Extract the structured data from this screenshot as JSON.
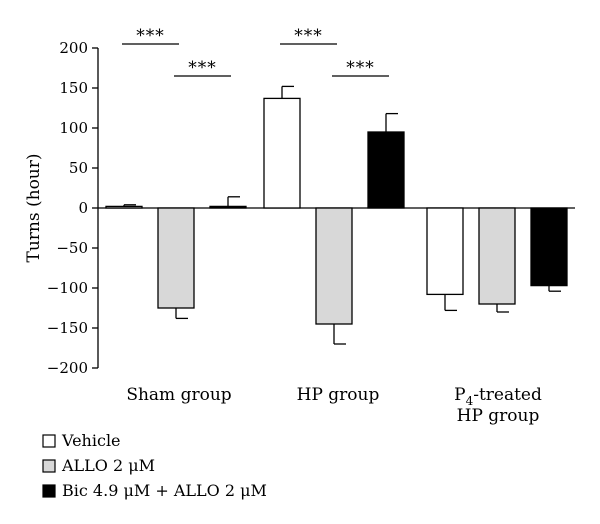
{
  "chart_data": {
    "type": "bar",
    "ylabel": "Turns (hour)",
    "ylim": [
      -200,
      200
    ],
    "yticks": [
      -200,
      -150,
      -100,
      -50,
      0,
      50,
      100,
      150,
      200
    ],
    "categories": [
      {
        "lines": [
          "Sham group"
        ]
      },
      {
        "lines": [
          "HP group"
        ]
      },
      {
        "lines": [
          "P",
          "4",
          "-treated",
          "HP group"
        ]
      }
    ],
    "series": [
      {
        "name": "Vehicle",
        "color": "#ffffff",
        "values": [
          2,
          137,
          -108
        ],
        "errors": [
          2,
          15,
          20
        ]
      },
      {
        "name": "ALLO 2 μM",
        "color": "#d8d8d8",
        "values": [
          -125,
          -145,
          -120
        ],
        "errors": [
          13,
          25,
          10
        ]
      },
      {
        "name": "Bic 4.9 μM + ALLO 2 μM",
        "color": "#000000",
        "values": [
          2,
          95,
          -97
        ],
        "errors": [
          12,
          23,
          7
        ]
      }
    ],
    "significance": [
      {
        "label": "***",
        "category": 0,
        "from": 0,
        "to": 1,
        "y": 205
      },
      {
        "label": "***",
        "category": 0,
        "from": 1,
        "to": 2,
        "y": 165
      },
      {
        "label": "***",
        "category": 1,
        "from": 0,
        "to": 1,
        "y": 205
      },
      {
        "label": "***",
        "category": 1,
        "from": 1,
        "to": 2,
        "y": 165
      }
    ],
    "legend_position": "bottom-left"
  }
}
